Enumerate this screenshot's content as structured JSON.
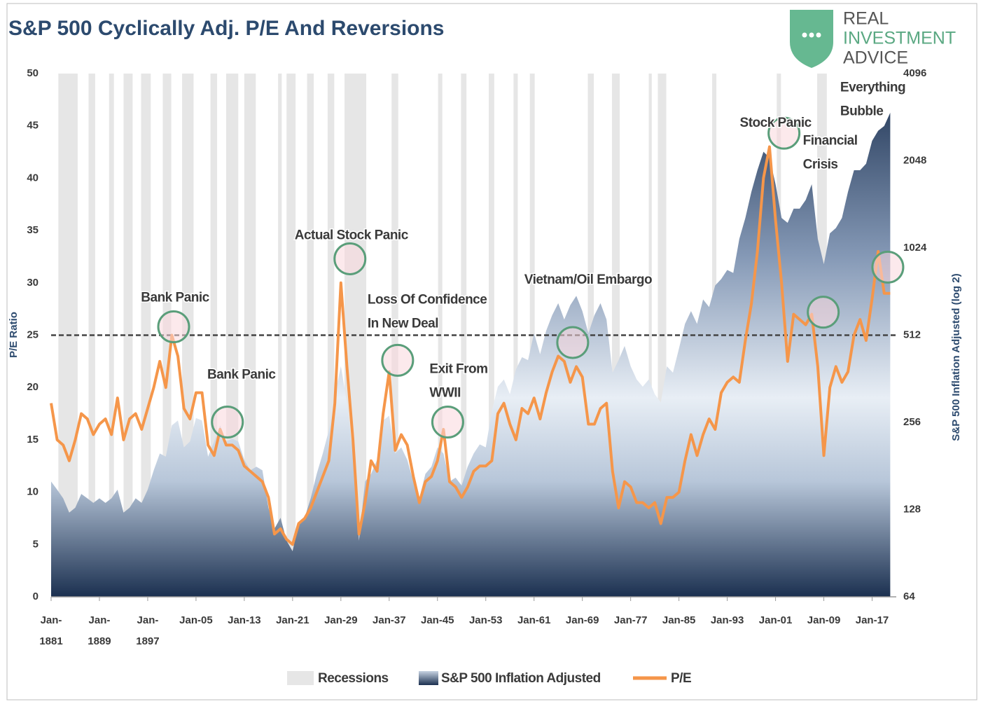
{
  "chart_data": {
    "type": "line",
    "title": "S&P 500 Cyclically Adj. P/E And Reversions",
    "logo": [
      "REAL",
      "INVESTMENT",
      "ADVICE"
    ],
    "ylabel": "P/E Ratio",
    "y2label": "S&P 500 Inflation Adjusted (log 2)",
    "xlim": [
      1881,
      2021
    ],
    "xticks": [
      {
        "value": 1881,
        "label": "Jan-1881"
      },
      {
        "value": 1889,
        "label": "Jan-1889"
      },
      {
        "value": 1897,
        "label": "Jan-1897"
      },
      {
        "value": 1905,
        "label": "Jan-05"
      },
      {
        "value": 1913,
        "label": "Jan-13"
      },
      {
        "value": 1921,
        "label": "Jan-21"
      },
      {
        "value": 1929,
        "label": "Jan-29"
      },
      {
        "value": 1937,
        "label": "Jan-37"
      },
      {
        "value": 1945,
        "label": "Jan-45"
      },
      {
        "value": 1953,
        "label": "Jan-53"
      },
      {
        "value": 1961,
        "label": "Jan-61"
      },
      {
        "value": 1969,
        "label": "Jan-69"
      },
      {
        "value": 1977,
        "label": "Jan-77"
      },
      {
        "value": 1985,
        "label": "Jan-85"
      },
      {
        "value": 1993,
        "label": "Jan-93"
      },
      {
        "value": 2001,
        "label": "Jan-01"
      },
      {
        "value": 2009,
        "label": "Jan-09"
      },
      {
        "value": 2017,
        "label": "Jan-17"
      }
    ],
    "ylim": [
      0,
      50
    ],
    "yticks": [
      0,
      5,
      10,
      15,
      20,
      25,
      30,
      35,
      40,
      45,
      50
    ],
    "y2lim": [
      64,
      4096
    ],
    "y2ticks": [
      64,
      128,
      256,
      512,
      1024,
      2048,
      4096
    ],
    "y2scale": "log2",
    "reference_line": 25,
    "recessions": {
      "name": "Recessions",
      "color": "#e6e6e6",
      "ranges": [
        [
          1882.2,
          1885.4
        ],
        [
          1887.2,
          1888.3
        ],
        [
          1890.6,
          1891.4
        ],
        [
          1893.0,
          1894.5
        ],
        [
          1895.9,
          1897.5
        ],
        [
          1899.5,
          1900.9
        ],
        [
          1902.7,
          1904.6
        ],
        [
          1907.4,
          1908.5
        ],
        [
          1910.0,
          1912.0
        ],
        [
          1913.0,
          1914.9
        ],
        [
          1918.6,
          1919.2
        ],
        [
          1920.0,
          1921.5
        ],
        [
          1923.4,
          1924.5
        ],
        [
          1926.8,
          1927.9
        ],
        [
          1929.6,
          1933.2
        ],
        [
          1937.4,
          1938.5
        ],
        [
          1945.1,
          1945.8
        ],
        [
          1948.9,
          1949.8
        ],
        [
          1953.5,
          1954.4
        ],
        [
          1957.6,
          1958.3
        ],
        [
          1960.3,
          1961.1
        ],
        [
          1969.9,
          1970.9
        ],
        [
          1973.9,
          1975.2
        ],
        [
          1980.0,
          1980.5
        ],
        [
          1981.5,
          1982.9
        ],
        [
          1990.5,
          1991.2
        ],
        [
          2001.2,
          2001.9
        ],
        [
          2007.9,
          2009.5
        ]
      ]
    },
    "x": [
      1881,
      1882,
      1883,
      1884,
      1885,
      1886,
      1887,
      1888,
      1889,
      1890,
      1891,
      1892,
      1893,
      1894,
      1895,
      1896,
      1897,
      1898,
      1899,
      1900,
      1901,
      1902,
      1903,
      1904,
      1905,
      1906,
      1907,
      1908,
      1909,
      1910,
      1911,
      1912,
      1913,
      1914,
      1915,
      1916,
      1917,
      1918,
      1919,
      1920,
      1921,
      1922,
      1923,
      1924,
      1925,
      1926,
      1927,
      1928,
      1929,
      1930,
      1931,
      1932,
      1933,
      1934,
      1935,
      1936,
      1937,
      1938,
      1939,
      1940,
      1941,
      1942,
      1943,
      1944,
      1945,
      1946,
      1947,
      1948,
      1949,
      1950,
      1951,
      1952,
      1953,
      1954,
      1955,
      1956,
      1957,
      1958,
      1959,
      1960,
      1961,
      1962,
      1963,
      1964,
      1965,
      1966,
      1967,
      1968,
      1969,
      1970,
      1971,
      1972,
      1973,
      1974,
      1975,
      1976,
      1977,
      1978,
      1979,
      1980,
      1981,
      1982,
      1983,
      1984,
      1985,
      1986,
      1987,
      1988,
      1989,
      1990,
      1991,
      1992,
      1993,
      1994,
      1995,
      1996,
      1997,
      1998,
      1999,
      2000,
      2001,
      2002,
      2003,
      2004,
      2005,
      2006,
      2007,
      2008,
      2009,
      2010,
      2011,
      2012,
      2013,
      2014,
      2015,
      2016,
      2017,
      2018,
      2019,
      2020
    ],
    "series": [
      {
        "name": "S&P 500 Inflation Adjusted",
        "axis": "y2",
        "style": "area",
        "color": "#2b4670",
        "values": [
          160,
          150,
          140,
          125,
          130,
          145,
          140,
          135,
          140,
          135,
          140,
          150,
          125,
          130,
          140,
          135,
          150,
          175,
          200,
          195,
          250,
          260,
          210,
          220,
          265,
          260,
          195,
          220,
          250,
          220,
          225,
          220,
          190,
          175,
          180,
          175,
          130,
          110,
          120,
          100,
          92,
          115,
          120,
          140,
          170,
          200,
          240,
          320,
          400,
          300,
          200,
          100,
          160,
          170,
          190,
          260,
          270,
          200,
          210,
          190,
          160,
          140,
          170,
          180,
          210,
          200,
          160,
          165,
          155,
          180,
          200,
          215,
          210,
          280,
          340,
          360,
          320,
          390,
          430,
          420,
          520,
          440,
          530,
          600,
          660,
          580,
          650,
          700,
          620,
          520,
          600,
          660,
          580,
          380,
          420,
          470,
          400,
          360,
          340,
          360,
          320,
          300,
          400,
          380,
          460,
          560,
          620,
          560,
          680,
          640,
          760,
          800,
          860,
          840,
          1100,
          1300,
          1600,
          1900,
          2200,
          2100,
          1700,
          1300,
          1250,
          1400,
          1400,
          1500,
          1700,
          1100,
          900,
          1150,
          1200,
          1300,
          1600,
          1900,
          1900,
          2000,
          2400,
          2600,
          2700,
          3000
        ]
      },
      {
        "name": "P/E",
        "style": "line",
        "color": "#f5964a",
        "values": [
          18.5,
          15,
          14.5,
          13,
          15,
          17.5,
          17,
          15.5,
          16.5,
          17,
          15.5,
          19,
          15,
          17,
          17.5,
          16,
          18,
          20,
          22.5,
          20,
          25,
          23,
          18,
          17,
          19.5,
          19.5,
          14.5,
          13.5,
          16,
          14.5,
          14.5,
          14,
          12.5,
          12,
          11.5,
          11,
          9.5,
          6,
          6.5,
          5.5,
          5,
          7,
          7.5,
          8.5,
          10,
          11.5,
          13,
          18.5,
          30,
          22,
          15,
          6,
          9,
          13,
          12,
          17.5,
          21.5,
          14,
          15.5,
          14.5,
          11.5,
          9,
          11,
          11.5,
          13,
          16,
          11,
          10.5,
          9.5,
          10.5,
          12,
          12.5,
          12.5,
          13,
          17.5,
          18.5,
          16.5,
          15,
          18,
          17.5,
          19,
          17,
          19.5,
          21.5,
          23,
          22.5,
          20.5,
          22,
          21,
          16.5,
          16.5,
          18,
          18.5,
          12,
          8.5,
          11,
          10.5,
          9,
          9,
          8.5,
          9,
          7,
          9.5,
          9.5,
          10,
          13,
          15.5,
          13.5,
          15.5,
          17,
          16,
          19.5,
          20.5,
          21,
          20.5,
          24.5,
          28,
          33,
          40,
          43,
          36,
          30,
          22.5,
          27,
          26.5,
          26,
          27,
          22,
          13.5,
          20,
          22,
          20.5,
          21.5,
          25,
          26.5,
          24.5,
          28.5,
          33,
          29,
          29
        ]
      }
    ],
    "annotations": [
      {
        "text": [
          "Bank Panic"
        ],
        "x": 1901.3,
        "y": 25.8
      },
      {
        "text": [
          "Bank Panic"
        ],
        "x": 1910.2,
        "y": 16.7
      },
      {
        "text": [
          "Actual Stock Panic"
        ],
        "x": 1930.5,
        "y": 32.3
      },
      {
        "text": [
          "Loss Of Confidence",
          "In New Deal"
        ],
        "x": 1938.4,
        "y": 22.6
      },
      {
        "text": [
          "Exit From",
          "WWII"
        ],
        "x": 1946.7,
        "y": 16.7
      },
      {
        "text": [
          "Vietnam/Oil Embargo"
        ],
        "x": 1967.4,
        "y": 24.3
      },
      {
        "text": [
          "Stock Panic"
        ],
        "x": 2002.4,
        "y": 44.3
      },
      {
        "text": [
          "Financial",
          "Crisis"
        ],
        "x": 2008.9,
        "y": 27.2
      },
      {
        "text": [
          "Everything",
          "Bubble"
        ],
        "x": 2019.6,
        "y": 31.5
      }
    ]
  }
}
